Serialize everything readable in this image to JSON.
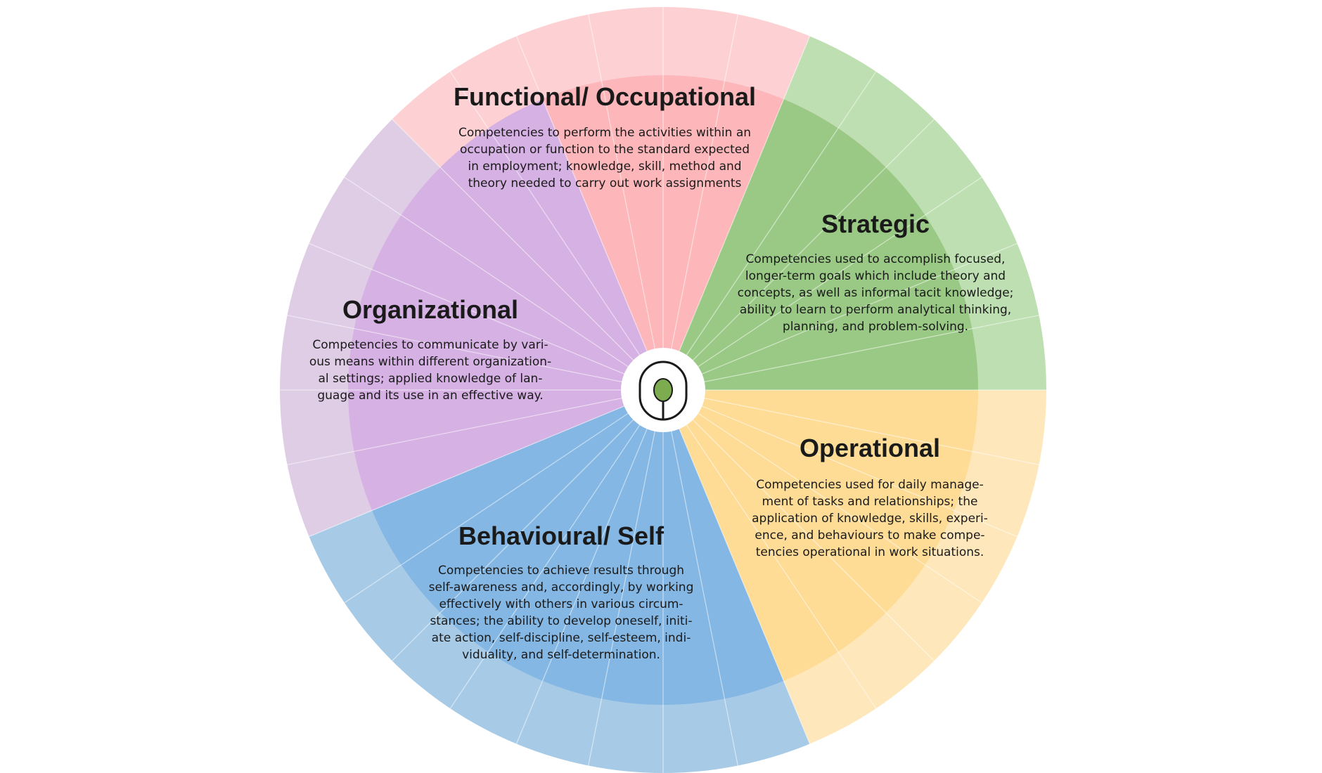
{
  "segments": [
    {
      "id": "functional",
      "title": "Functional/ Occupational",
      "description": [
        "Competencies to perform the activities within an",
        "occupation or function to the standard expected",
        "in employment; knowledge, skill, method and",
        "theory needed to carry out work assignments"
      ],
      "inner_color": "#fdb7ba",
      "outer_color": "#fdd1d4",
      "start_deg": 337.5,
      "end_deg": 45,
      "outer_start_deg": 315,
      "outer_end_deg": 22.5
    },
    {
      "id": "strategic",
      "title": "Strategic",
      "description": [
        "Competencies used to accomplish focused,",
        "longer-term goals which include theory and",
        "concepts, as well as informal tacit knowledge;",
        "ability to learn to perform analytical thinking,",
        "planning, and problem-solving."
      ],
      "inner_color": "#99c985",
      "outer_color": "#bddfb1",
      "start_deg": 22.5,
      "end_deg": 90,
      "outer_start_deg": 22.5,
      "outer_end_deg": 90
    },
    {
      "id": "operational",
      "title": "Operational",
      "description": [
        "Competencies used for daily manage-",
        "ment of tasks and relationships; the",
        "application of knowledge, skills, experi-",
        "ence, and behaviours to make compe-",
        "tencies operational in work situations."
      ],
      "inner_color": "#fedc96",
      "outer_color": "#fee7bb",
      "start_deg": 90,
      "end_deg": 157.5,
      "outer_start_deg": 90,
      "outer_end_deg": 157.5
    },
    {
      "id": "behavioural",
      "title": "Behavioural/ Self",
      "description": [
        "Competencies to achieve results through",
        "self-awareness and, accordingly, by working",
        "effectively with others in various circum-",
        "stances; the ability to develop oneself, initi-",
        "ate action, self-discipline, self-esteem, indi-",
        "viduality, and self-determination."
      ],
      "inner_color": "#84b7e3",
      "outer_color": "#a7cbe6",
      "start_deg": 157.5,
      "end_deg": 247.5,
      "outer_start_deg": 157.5,
      "outer_end_deg": 247.5
    },
    {
      "id": "organizational",
      "title": "Organizational",
      "description": [
        "Competencies to communicate by vari-",
        "ous means within different organization-",
        "al settings; applied knowledge of lan-",
        "guage and its use in an effective way."
      ],
      "inner_color": "#d6b1e3",
      "outer_color": "#dfcde6",
      "start_deg": 247.5,
      "end_deg": 337.5,
      "outer_start_deg": 247.5,
      "outer_end_deg": 315
    }
  ],
  "center_icon": "tree-logo-icon",
  "center_icon_color": "#7dab4f",
  "divider_color": "#ffffff"
}
